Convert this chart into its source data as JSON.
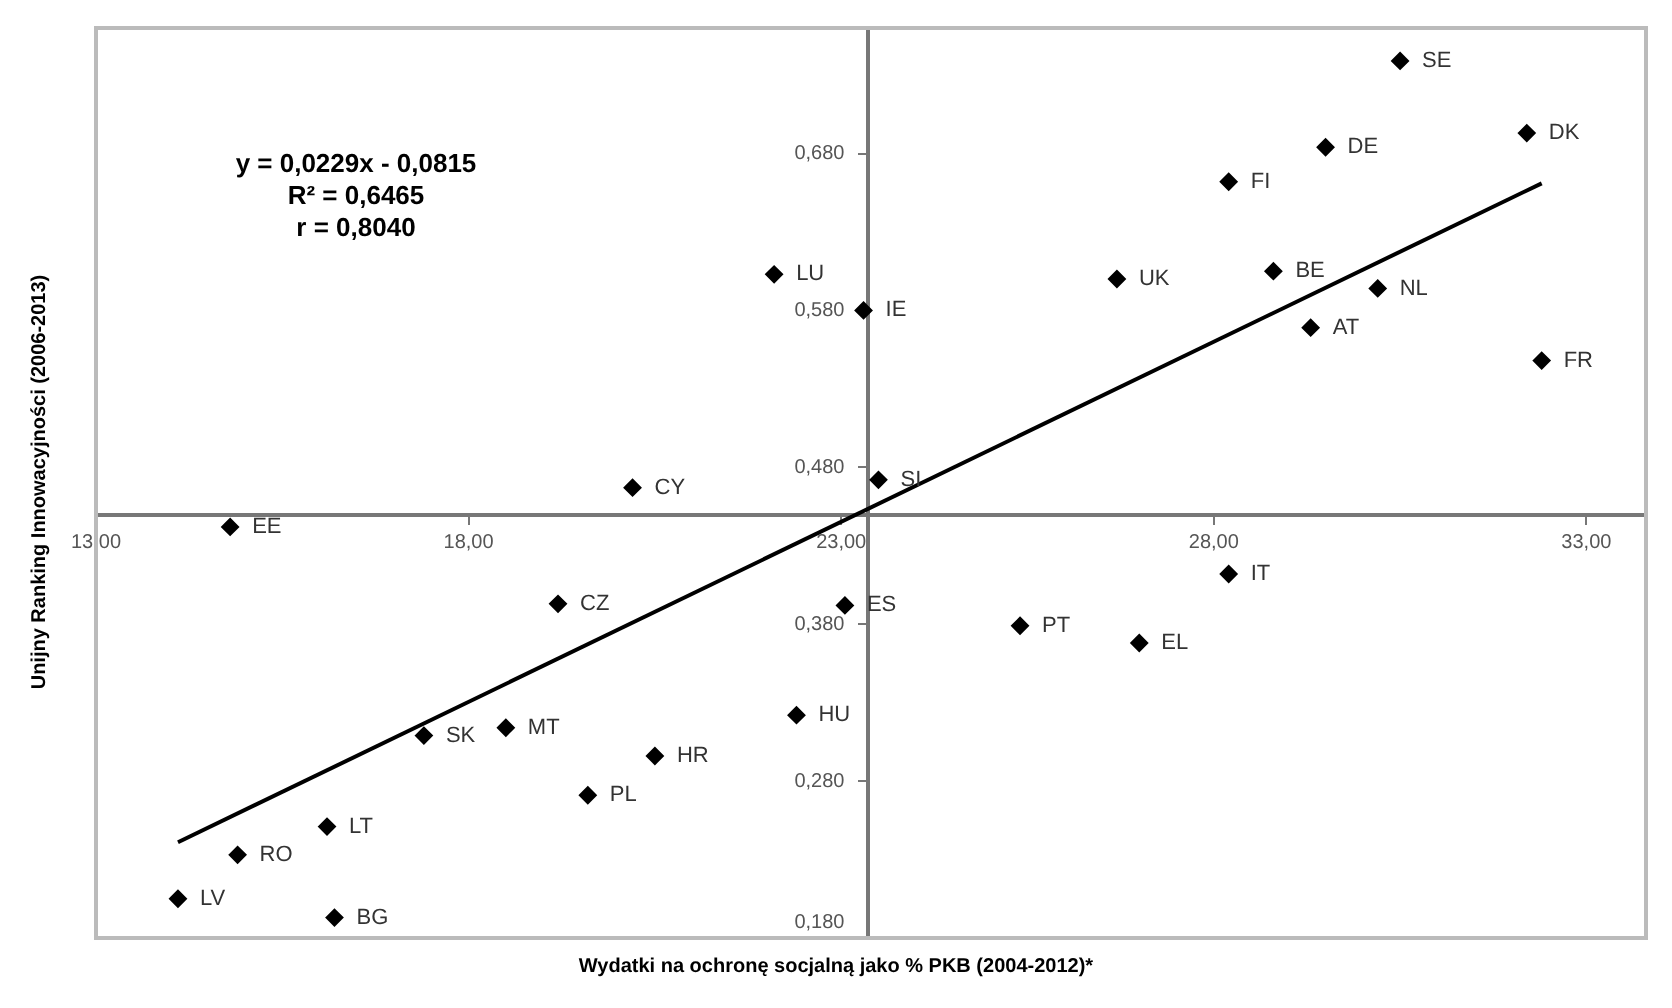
{
  "chart_data": {
    "type": "scatter",
    "xlabel": "Wydatki na ochronę socjalną jako % PKB (2004-2012)*",
    "ylabel": "Unijny Ranking Innowacyjności (2006-2013)",
    "xlim": [
      13,
      33.8
    ],
    "ylim": [
      0.18,
      0.76
    ],
    "xticks": [
      {
        "value": 13,
        "label": "13,00"
      },
      {
        "value": 18,
        "label": "18,00"
      },
      {
        "value": 23,
        "label": "23,00"
      },
      {
        "value": 28,
        "label": "28,00"
      },
      {
        "value": 33,
        "label": "33,00"
      }
    ],
    "yticks": [
      {
        "value": 0.18,
        "label": "0,180"
      },
      {
        "value": 0.28,
        "label": "0,280"
      },
      {
        "value": 0.38,
        "label": "0,380"
      },
      {
        "value": 0.48,
        "label": "0,480"
      },
      {
        "value": 0.58,
        "label": "0,580"
      },
      {
        "value": 0.68,
        "label": "0,680"
      }
    ],
    "grid": false,
    "marker": "diamond",
    "series": [
      {
        "type": "scatter",
        "color": "#000000",
        "x": [
          30.5,
          29.5,
          32.2,
          28.2,
          26.7,
          28.8,
          30.2,
          29.3,
          32.4,
          23.3,
          22.1,
          20.2,
          23.5,
          14.8,
          19.2,
          23.05,
          25.4,
          27.0,
          28.2,
          17.4,
          18.5,
          22.4,
          20.5,
          19.6,
          16.1,
          14.9,
          14.1,
          16.2
        ],
        "values": [
          0.739,
          0.684,
          0.693,
          0.662,
          0.6,
          0.605,
          0.594,
          0.569,
          0.548,
          0.58,
          0.603,
          0.467,
          0.472,
          0.442,
          0.393,
          0.392,
          0.379,
          0.368,
          0.412,
          0.309,
          0.314,
          0.322,
          0.296,
          0.271,
          0.251,
          0.233,
          0.205,
          0.193
        ]
      },
      {
        "type": "line",
        "color": "#000000",
        "marker": "none",
        "line_style": "solid",
        "x": [
          14.1,
          32.4
        ],
        "values": [
          0.241,
          0.661
        ]
      }
    ],
    "annotations": [
      "y = 0,0229x - 0,0815",
      "R² = 0,6465",
      "r = 0,8040",
      {
        "text": "SE",
        "x": 30.5,
        "y": 0.739
      },
      {
        "text": "DE",
        "x": 29.5,
        "y": 0.684
      },
      {
        "text": "DK",
        "x": 32.2,
        "y": 0.693
      },
      {
        "text": "FI",
        "x": 28.2,
        "y": 0.662
      },
      {
        "text": "UK",
        "x": 26.7,
        "y": 0.6
      },
      {
        "text": "BE",
        "x": 28.8,
        "y": 0.605
      },
      {
        "text": "NL",
        "x": 30.2,
        "y": 0.594
      },
      {
        "text": "AT",
        "x": 29.3,
        "y": 0.569
      },
      {
        "text": "FR",
        "x": 32.4,
        "y": 0.548
      },
      {
        "text": "IE",
        "x": 23.3,
        "y": 0.58
      },
      {
        "text": "LU",
        "x": 22.1,
        "y": 0.603
      },
      {
        "text": "CY",
        "x": 20.2,
        "y": 0.467
      },
      {
        "text": "SI",
        "x": 23.5,
        "y": 0.472
      },
      {
        "text": "EE",
        "x": 14.8,
        "y": 0.442
      },
      {
        "text": "CZ",
        "x": 19.2,
        "y": 0.393
      },
      {
        "text": "ES",
        "x": 23.05,
        "y": 0.392
      },
      {
        "text": "PT",
        "x": 25.4,
        "y": 0.379
      },
      {
        "text": "EL",
        "x": 27.0,
        "y": 0.368
      },
      {
        "text": "IT",
        "x": 28.2,
        "y": 0.412
      },
      {
        "text": "SK",
        "x": 17.4,
        "y": 0.309
      },
      {
        "text": "MT",
        "x": 18.5,
        "y": 0.314
      },
      {
        "text": "HU",
        "x": 22.4,
        "y": 0.322
      },
      {
        "text": "HR",
        "x": 20.5,
        "y": 0.296
      },
      {
        "text": "PL",
        "x": 19.6,
        "y": 0.271
      },
      {
        "text": "LT",
        "x": 16.1,
        "y": 0.251
      },
      {
        "text": "RO",
        "x": 14.9,
        "y": 0.233
      },
      {
        "text": "LV",
        "x": 14.1,
        "y": 0.205
      },
      {
        "text": "BG",
        "x": 16.2,
        "y": 0.193
      }
    ]
  }
}
